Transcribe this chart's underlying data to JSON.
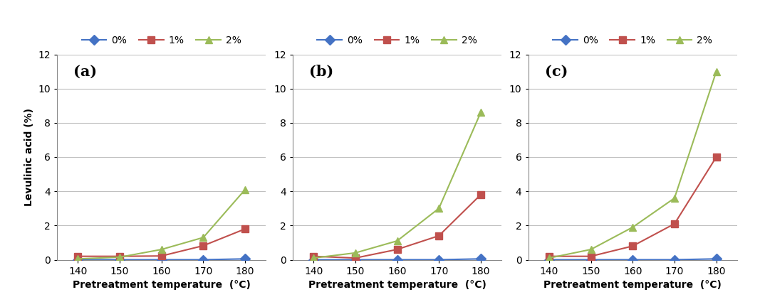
{
  "x": [
    140,
    150,
    160,
    170,
    180
  ],
  "panels": [
    {
      "label": "(a)",
      "series": {
        "0%": [
          0.0,
          0.0,
          0.0,
          0.0,
          0.05
        ],
        "1%": [
          0.2,
          0.2,
          0.22,
          0.82,
          1.8
        ],
        "2%": [
          0.05,
          0.15,
          0.6,
          1.3,
          4.1
        ]
      }
    },
    {
      "label": "(b)",
      "series": {
        "0%": [
          0.0,
          0.0,
          0.0,
          0.0,
          0.05
        ],
        "1%": [
          0.2,
          0.1,
          0.6,
          1.4,
          3.8
        ],
        "2%": [
          0.1,
          0.4,
          1.1,
          3.0,
          8.6
        ]
      }
    },
    {
      "label": "(c)",
      "series": {
        "0%": [
          0.0,
          0.0,
          0.0,
          0.0,
          0.05
        ],
        "1%": [
          0.2,
          0.2,
          0.8,
          2.1,
          6.0
        ],
        "2%": [
          0.1,
          0.6,
          1.9,
          3.6,
          11.0
        ]
      }
    }
  ],
  "series_styles": {
    "0%": {
      "color": "#4472C4",
      "marker": "D",
      "linestyle": "-"
    },
    "1%": {
      "color": "#C0504D",
      "marker": "s",
      "linestyle": "-"
    },
    "2%": {
      "color": "#9BBB59",
      "marker": "^",
      "linestyle": "-"
    }
  },
  "ylim": [
    0,
    12
  ],
  "yticks": [
    0,
    2,
    4,
    6,
    8,
    10,
    12
  ],
  "xlabel": "Pretreatment temperature  (°C)",
  "ylabel": "Levulinic acid (%)",
  "legend_labels": [
    "0%",
    "1%",
    "2%"
  ],
  "background_color": "#ffffff",
  "grid_color": "#c0c0c0",
  "label_fontsize": 10,
  "tick_fontsize": 10,
  "legend_fontsize": 10,
  "panel_label_fontsize": 15
}
